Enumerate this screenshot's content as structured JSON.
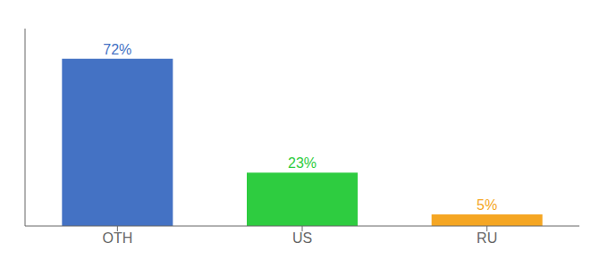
{
  "chart_data": {
    "type": "bar",
    "categories": [
      "OTH",
      "US",
      "RU"
    ],
    "values": [
      72,
      23,
      5
    ],
    "value_labels": [
      "72%",
      "23%",
      "5%"
    ],
    "colors": [
      "#4472c4",
      "#2ecc40",
      "#f5a623"
    ],
    "ylim": [
      0,
      85
    ],
    "data_labels": true,
    "tick_labels": "x",
    "grid": false
  }
}
